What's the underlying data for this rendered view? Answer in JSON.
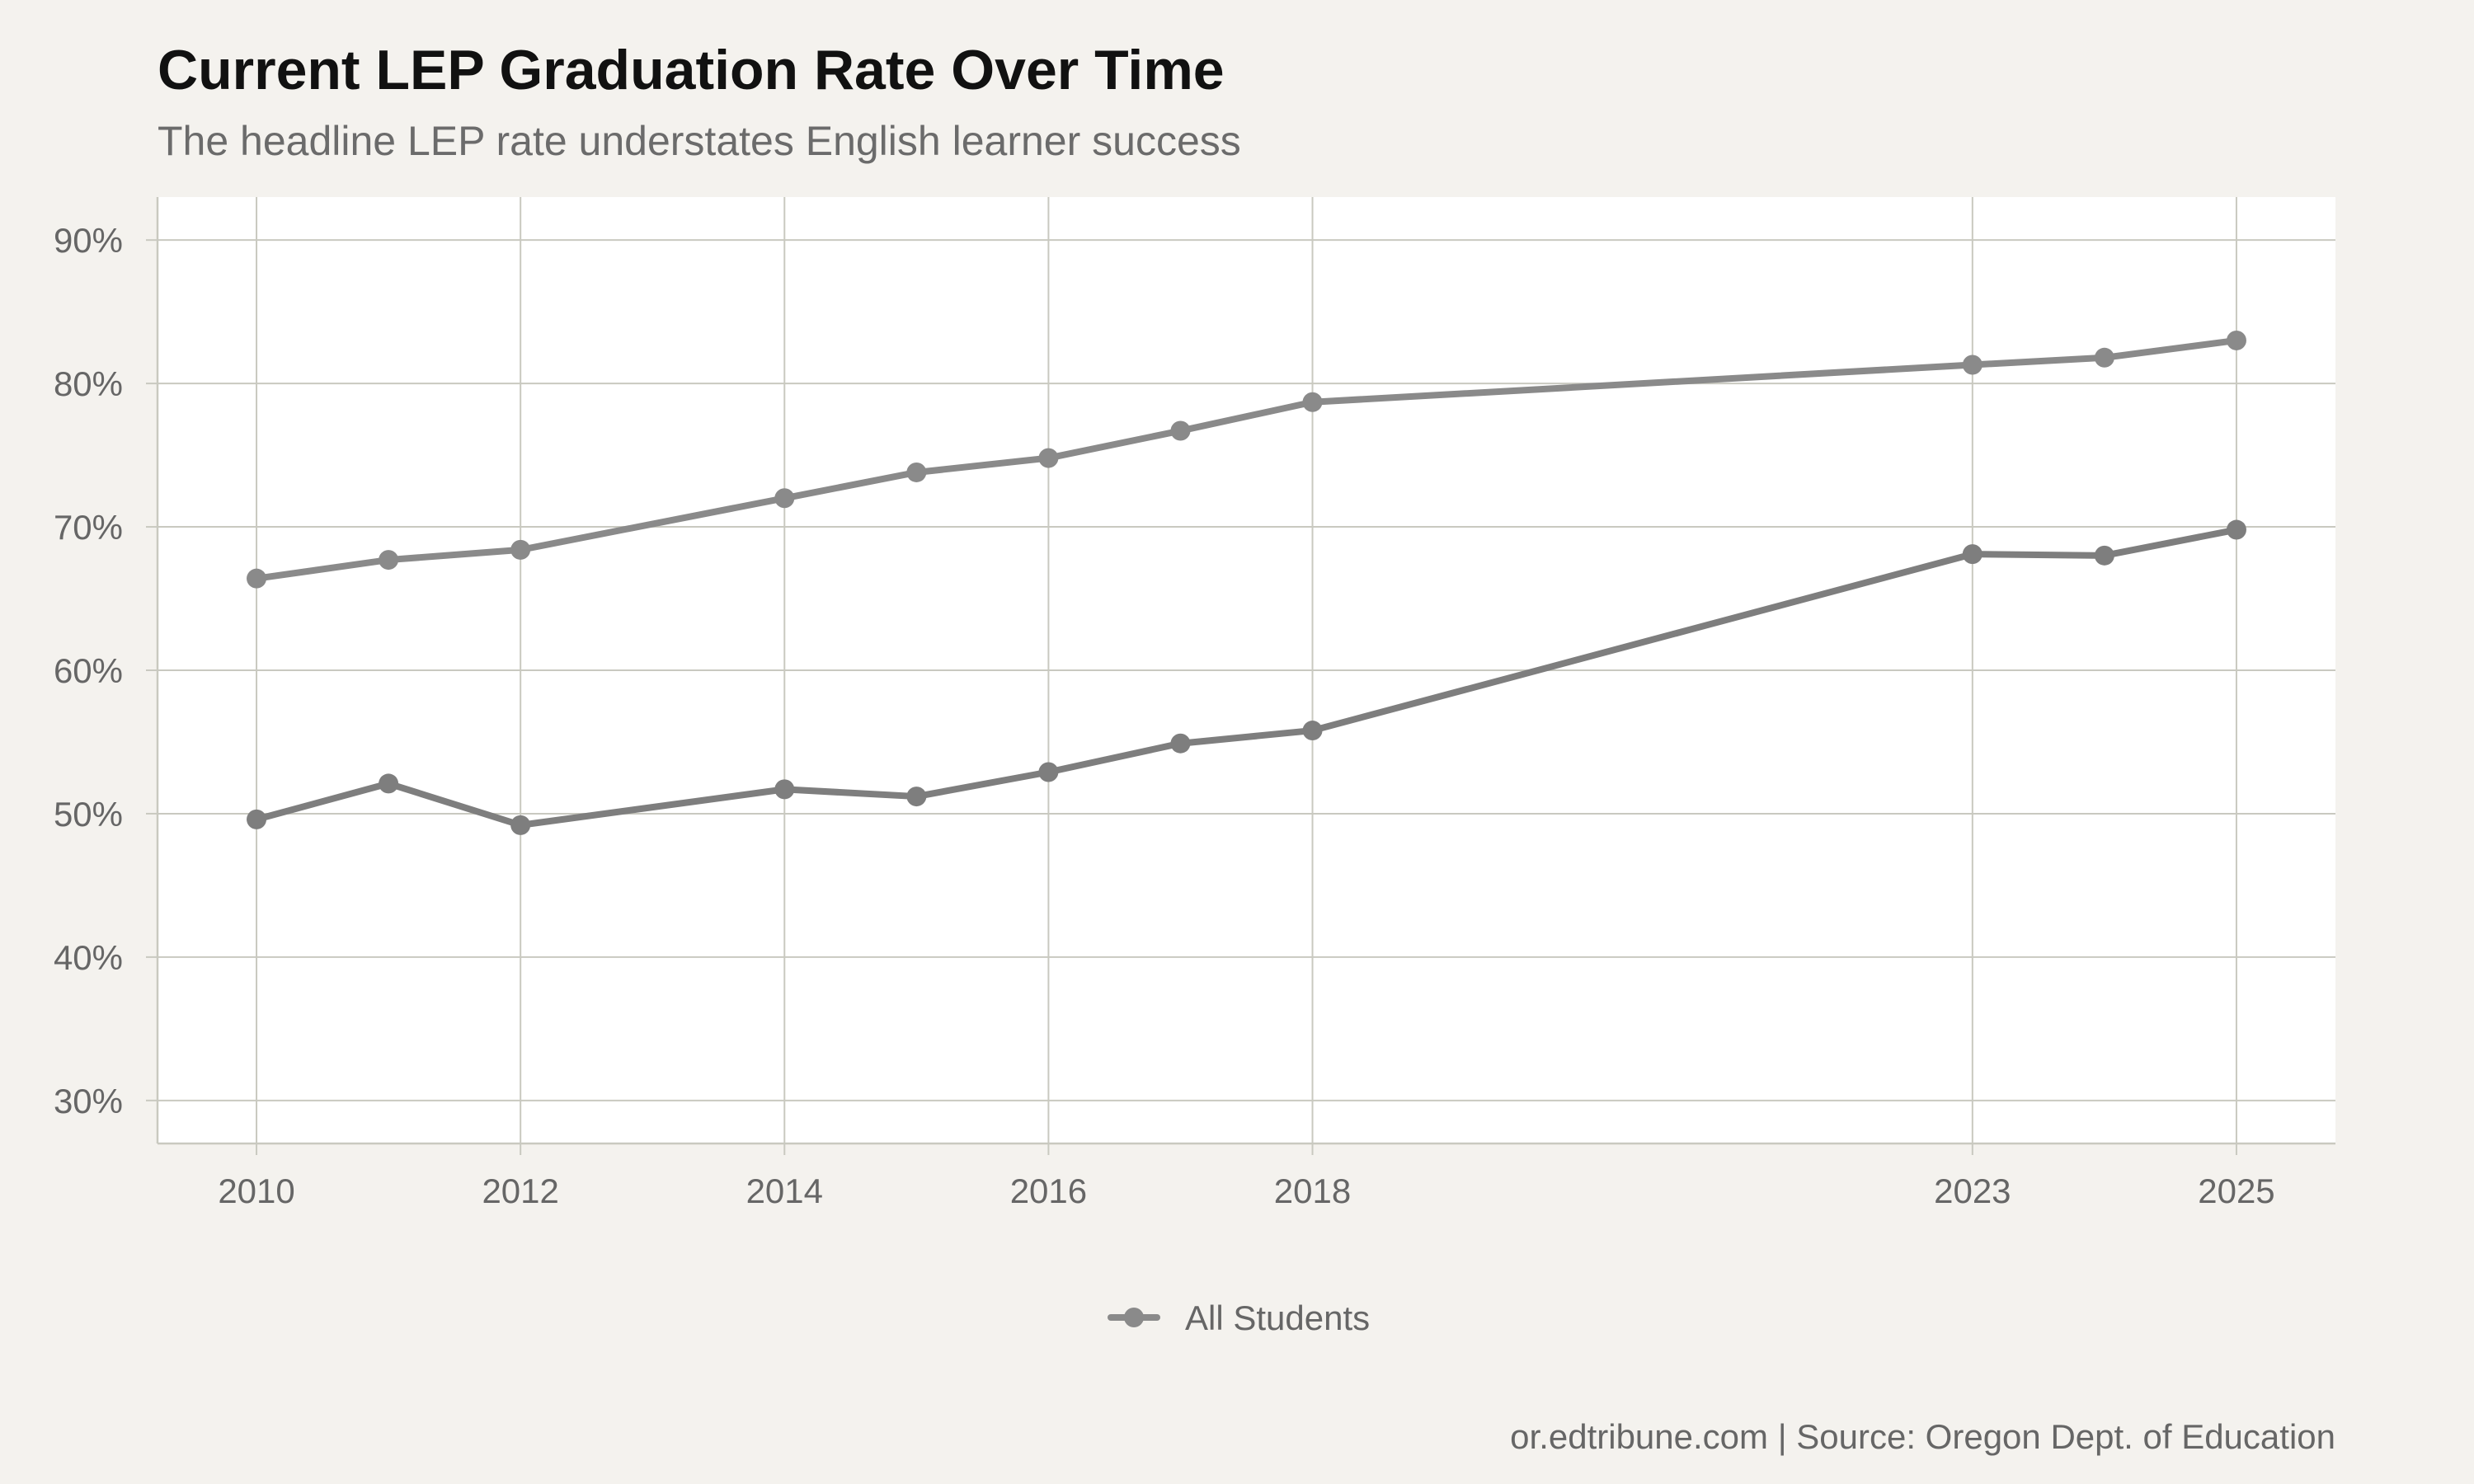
{
  "chart_data": {
    "type": "line",
    "title": "Current LEP Graduation Rate Over Time",
    "subtitle": "The headline LEP rate understates English learner success",
    "xlabel": "",
    "ylabel": "",
    "x": [
      2010,
      2011,
      2012,
      2014,
      2015,
      2016,
      2017,
      2018,
      2023,
      2024,
      2025
    ],
    "x_ticks": [
      2010,
      2012,
      2014,
      2016,
      2018,
      2023,
      2025
    ],
    "xlim": [
      2009.25,
      2025.75
    ],
    "ylim": [
      27,
      93
    ],
    "y_ticks": [
      30,
      40,
      50,
      60,
      70,
      80,
      90
    ],
    "y_tick_labels": [
      "30%",
      "40%",
      "50%",
      "60%",
      "70%",
      "80%",
      "90%"
    ],
    "grid": true,
    "legend_position": "bottom",
    "series": [
      {
        "name": "All Students",
        "color": "#8a8a8a",
        "values": [
          66.4,
          67.7,
          68.4,
          72.0,
          73.8,
          74.8,
          76.7,
          78.7,
          81.3,
          81.8,
          83.0
        ]
      },
      {
        "color": "#7e7e7e",
        "values": [
          49.6,
          52.1,
          49.2,
          51.7,
          51.2,
          52.9,
          54.9,
          55.8,
          68.1,
          68.0,
          69.8
        ]
      }
    ],
    "caption": "or.edtribune.com | Source: Oregon Dept. of Education"
  },
  "colors": {
    "background": "#f4f2ee",
    "panel": "#ffffff",
    "grid": "#c9c9c0",
    "title": "#111111",
    "subtitle": "#6b6b6b",
    "tick": "#666666"
  }
}
